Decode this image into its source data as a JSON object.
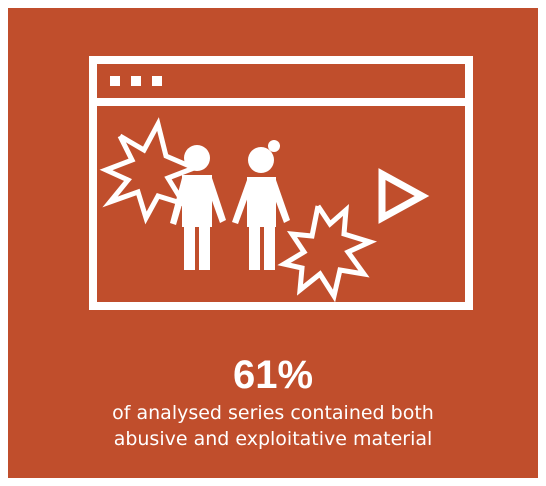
{
  "colors": {
    "background": "#c04e2c",
    "foreground": "#ffffff"
  },
  "illustration": {
    "icons": [
      "browser-window-icon",
      "window-dots-icon",
      "child-figure-icon",
      "girl-figure-icon",
      "burst-icon",
      "play-icon"
    ]
  },
  "stat": {
    "value": "61%",
    "caption_line1": "of analysed series contained both",
    "caption_line2": "abusive and exploitative material"
  }
}
